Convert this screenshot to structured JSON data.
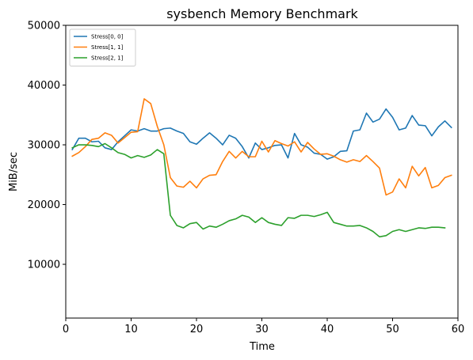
{
  "chart_data": {
    "type": "line",
    "title": "sysbench Memory Benchmark",
    "xlabel": "Time",
    "ylabel": "MiB/sec",
    "xlim": [
      0,
      60
    ],
    "ylim": [
      1000,
      50000
    ],
    "xticks": [
      0,
      10,
      20,
      30,
      40,
      50,
      60
    ],
    "yticks": [
      10000,
      20000,
      30000,
      40000,
      50000
    ],
    "grid": false,
    "legend_position": "top-left",
    "series": [
      {
        "name": "Stress[0, 0]",
        "color": "#1f77b4",
        "x": [
          1,
          2,
          3,
          4,
          5,
          6,
          7,
          8,
          9,
          10,
          11,
          12,
          13,
          14,
          15,
          16,
          17,
          18,
          19,
          20,
          21,
          22,
          23,
          24,
          25,
          26,
          27,
          28,
          29,
          30,
          31,
          32,
          33,
          34,
          35,
          36,
          37,
          38,
          39,
          40,
          41,
          42,
          43,
          44,
          45,
          46,
          47,
          48,
          49,
          50,
          51,
          52,
          53,
          54,
          55,
          56,
          57,
          58,
          59
        ],
        "y": [
          29200,
          31100,
          31100,
          30500,
          30600,
          29500,
          29200,
          30500,
          31500,
          32500,
          32300,
          32700,
          32300,
          32300,
          32700,
          32800,
          32300,
          31900,
          30500,
          30100,
          31100,
          32000,
          31100,
          30000,
          31600,
          31100,
          29700,
          27800,
          30300,
          29200,
          29500,
          29900,
          30000,
          27800,
          31900,
          30000,
          29600,
          28600,
          28400,
          27600,
          28000,
          28900,
          29000,
          32300,
          32500,
          35300,
          33800,
          34300,
          36000,
          34600,
          32500,
          32800,
          34900,
          33300,
          33200,
          31500,
          33000,
          34000,
          32900
        ]
      },
      {
        "name": "Stress[1, 1]",
        "color": "#ff7f0e",
        "x": [
          1,
          2,
          3,
          4,
          5,
          6,
          7,
          8,
          9,
          10,
          11,
          12,
          13,
          14,
          15,
          16,
          17,
          18,
          19,
          20,
          21,
          22,
          23,
          24,
          25,
          26,
          27,
          28,
          29,
          30,
          31,
          32,
          33,
          34,
          35,
          36,
          37,
          38,
          39,
          40,
          41,
          42,
          43,
          44,
          45,
          46,
          47,
          48,
          49,
          50,
          51,
          52,
          53,
          54,
          55,
          56,
          57,
          58,
          59
        ],
        "y": [
          28100,
          28700,
          29700,
          30900,
          31100,
          32000,
          31600,
          30300,
          31200,
          32100,
          32200,
          37700,
          36900,
          33100,
          30000,
          24500,
          23100,
          22900,
          23900,
          22800,
          24300,
          24900,
          25000,
          27200,
          28900,
          27800,
          28900,
          28000,
          28000,
          30600,
          28800,
          30700,
          30200,
          29800,
          30500,
          28800,
          30400,
          29300,
          28400,
          28500,
          28100,
          27500,
          27100,
          27500,
          27200,
          28200,
          27200,
          26100,
          21600,
          22100,
          24300,
          22800,
          26400,
          24800,
          26200,
          22800,
          23200,
          24500,
          24900
        ]
      },
      {
        "name": "Stress[2, 1]",
        "color": "#2ca02c",
        "x": [
          1,
          2,
          3,
          4,
          5,
          6,
          7,
          8,
          9,
          10,
          11,
          12,
          13,
          14,
          15,
          16,
          17,
          18,
          19,
          20,
          21,
          22,
          23,
          24,
          25,
          26,
          27,
          28,
          29,
          30,
          31,
          32,
          33,
          34,
          35,
          36,
          37,
          38,
          39,
          40,
          41,
          42,
          43,
          44,
          45,
          46,
          47,
          48,
          49,
          50,
          51,
          52,
          53,
          54,
          55,
          56,
          57,
          58
        ],
        "y": [
          29500,
          30000,
          30000,
          29900,
          29700,
          30200,
          29500,
          28700,
          28400,
          27800,
          28200,
          27900,
          28300,
          29200,
          28500,
          18200,
          16500,
          16100,
          16800,
          17000,
          15900,
          16400,
          16200,
          16700,
          17300,
          17600,
          18200,
          17900,
          17000,
          17800,
          17000,
          16700,
          16500,
          17800,
          17700,
          18200,
          18200,
          18000,
          18300,
          18700,
          17000,
          16700,
          16400,
          16400,
          16500,
          16100,
          15500,
          14600,
          14800,
          15500,
          15800,
          15500,
          15800,
          16100,
          16000,
          16200,
          16200,
          16100
        ]
      }
    ]
  }
}
